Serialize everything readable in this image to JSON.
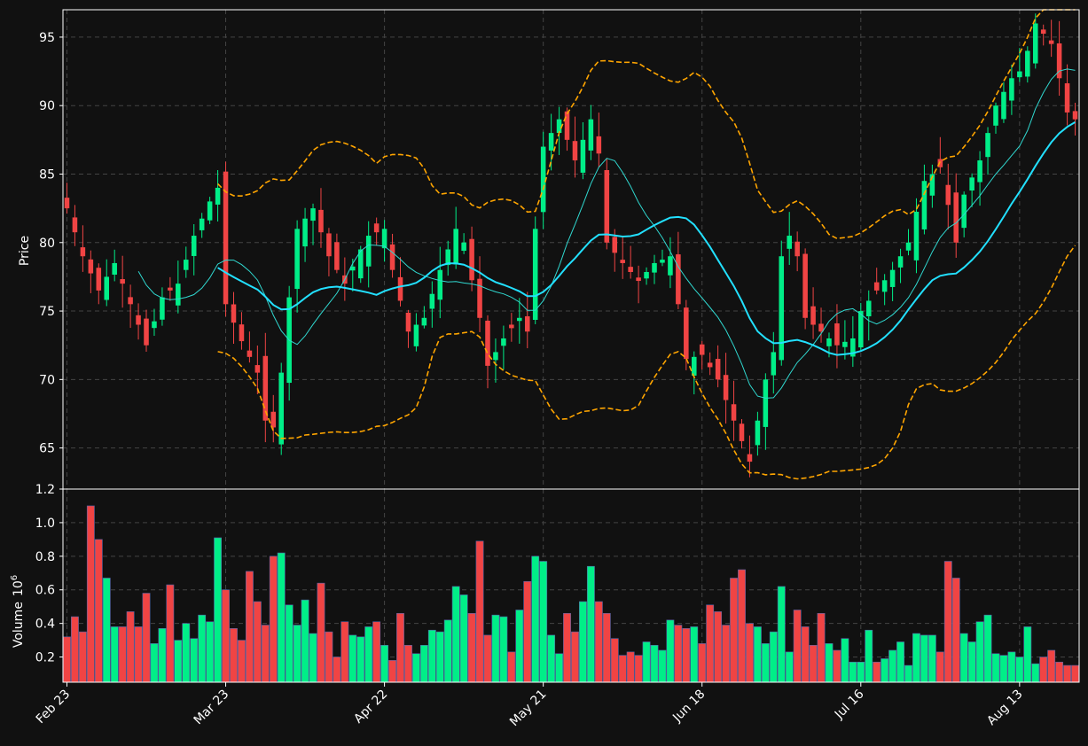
{
  "chart_data": {
    "type": "candlestick",
    "colors": {
      "background": "#111111",
      "up": "#00ee88",
      "down": "#f04444",
      "bollinger": "#ffa500",
      "ma_long": "#22e0ff",
      "ma_short": "#30d8d0",
      "grid": "#444444",
      "axis": "#ffffff"
    },
    "price_panel": {
      "ylabel": "Price",
      "ylim": [
        62.0,
        97.0
      ],
      "yticks": [
        "65",
        "70",
        "75",
        "80",
        "85",
        "90",
        "95"
      ]
    },
    "volume_panel": {
      "ylabel": "Volume",
      "ylabel_exponent": "6",
      "ylim": [
        0.05,
        1.2
      ],
      "yticks": [
        "0.2",
        "0.4",
        "0.6",
        "0.8",
        "1.0",
        "1.2"
      ]
    },
    "x_tick_labels": [
      {
        "index": 0,
        "label": "Feb 23"
      },
      {
        "index": 20,
        "label": "Mar 23"
      },
      {
        "index": 40,
        "label": "Apr 22"
      },
      {
        "index": 60,
        "label": "May 21"
      },
      {
        "index": 80,
        "label": "Jun 18"
      },
      {
        "index": 100,
        "label": "Jul 16"
      },
      {
        "index": 120,
        "label": "Aug 13"
      }
    ],
    "price_anchors": [
      [
        0,
        82.5
      ],
      [
        2,
        79.0
      ],
      [
        4,
        76.5
      ],
      [
        6,
        78.5
      ],
      [
        8,
        75.5
      ],
      [
        10,
        72.5
      ],
      [
        12,
        76.0
      ],
      [
        14,
        77.0
      ],
      [
        16,
        80.5
      ],
      [
        18,
        83.0
      ],
      [
        19,
        84.0
      ],
      [
        20,
        75.5
      ],
      [
        22,
        72.8
      ],
      [
        24,
        70.5
      ],
      [
        25,
        67.0
      ],
      [
        26,
        66.5
      ],
      [
        27,
        70.5
      ],
      [
        28,
        76.0
      ],
      [
        29,
        81.0
      ],
      [
        31,
        82.5
      ],
      [
        33,
        79.0
      ],
      [
        35,
        77.0
      ],
      [
        37,
        79.5
      ],
      [
        38,
        80.5
      ],
      [
        40,
        81.0
      ],
      [
        41,
        78.0
      ],
      [
        43,
        73.5
      ],
      [
        45,
        74.5
      ],
      [
        47,
        78.0
      ],
      [
        49,
        81.0
      ],
      [
        50,
        80.0
      ],
      [
        52,
        74.5
      ],
      [
        53,
        71.0
      ],
      [
        55,
        73.0
      ],
      [
        57,
        74.5
      ],
      [
        58,
        73.5
      ],
      [
        59,
        81.0
      ],
      [
        60,
        87.0
      ],
      [
        62,
        89.0
      ],
      [
        64,
        86.0
      ],
      [
        66,
        89.0
      ],
      [
        67,
        86.5
      ],
      [
        68,
        80.0
      ],
      [
        70,
        78.5
      ],
      [
        72,
        77.2
      ],
      [
        74,
        78.5
      ],
      [
        76,
        79.0
      ],
      [
        77,
        75.5
      ],
      [
        78,
        71.5
      ],
      [
        80,
        71.8
      ],
      [
        82,
        70.0
      ],
      [
        84,
        67.0
      ],
      [
        86,
        64.0
      ],
      [
        87,
        67.0
      ],
      [
        88,
        70.0
      ],
      [
        89,
        72.0
      ],
      [
        90,
        79.0
      ],
      [
        91,
        80.5
      ],
      [
        92,
        79.0
      ],
      [
        93,
        74.5
      ],
      [
        95,
        73.5
      ],
      [
        97,
        72.5
      ],
      [
        99,
        73.0
      ],
      [
        100,
        75.0
      ],
      [
        102,
        76.5
      ],
      [
        104,
        78.0
      ],
      [
        106,
        80.0
      ],
      [
        108,
        84.5
      ],
      [
        110,
        85.5
      ],
      [
        112,
        80.0
      ],
      [
        113,
        83.5
      ],
      [
        115,
        86.0
      ],
      [
        117,
        90.0
      ],
      [
        119,
        92.0
      ],
      [
        120,
        92.5
      ],
      [
        121,
        94.0
      ],
      [
        122,
        96.0
      ],
      [
        124,
        94.5
      ],
      [
        126,
        89.5
      ],
      [
        127,
        89.0
      ]
    ],
    "volume_anchors": [
      [
        0,
        0.32
      ],
      [
        1,
        0.44
      ],
      [
        2,
        0.35
      ],
      [
        3,
        1.1
      ],
      [
        4,
        0.9
      ],
      [
        5,
        0.67
      ],
      [
        6,
        0.38
      ],
      [
        7,
        0.38
      ],
      [
        8,
        0.47
      ],
      [
        9,
        0.38
      ],
      [
        10,
        0.58
      ],
      [
        11,
        0.28
      ],
      [
        12,
        0.37
      ],
      [
        13,
        0.63
      ],
      [
        14,
        0.3
      ],
      [
        15,
        0.4
      ],
      [
        16,
        0.31
      ],
      [
        17,
        0.45
      ],
      [
        18,
        0.41
      ],
      [
        19,
        0.91
      ],
      [
        20,
        0.6
      ],
      [
        21,
        0.37
      ],
      [
        22,
        0.3
      ],
      [
        23,
        0.71
      ],
      [
        24,
        0.53
      ],
      [
        25,
        0.39
      ],
      [
        26,
        0.8
      ],
      [
        27,
        0.82
      ],
      [
        28,
        0.51
      ],
      [
        29,
        0.39
      ],
      [
        30,
        0.54
      ],
      [
        31,
        0.34
      ],
      [
        32,
        0.64
      ],
      [
        33,
        0.35
      ],
      [
        34,
        0.2
      ],
      [
        35,
        0.41
      ],
      [
        36,
        0.33
      ],
      [
        37,
        0.32
      ],
      [
        38,
        0.38
      ],
      [
        39,
        0.41
      ],
      [
        40,
        0.27
      ],
      [
        41,
        0.18
      ],
      [
        42,
        0.46
      ],
      [
        43,
        0.27
      ],
      [
        44,
        0.22
      ],
      [
        45,
        0.27
      ],
      [
        46,
        0.36
      ],
      [
        47,
        0.35
      ],
      [
        48,
        0.42
      ],
      [
        49,
        0.62
      ],
      [
        50,
        0.57
      ],
      [
        51,
        0.46
      ],
      [
        52,
        0.89
      ],
      [
        53,
        0.33
      ],
      [
        54,
        0.45
      ],
      [
        55,
        0.44
      ],
      [
        56,
        0.23
      ],
      [
        57,
        0.48
      ],
      [
        58,
        0.65
      ],
      [
        59,
        0.8
      ],
      [
        60,
        0.77
      ],
      [
        61,
        0.33
      ],
      [
        62,
        0.22
      ],
      [
        63,
        0.46
      ],
      [
        64,
        0.35
      ],
      [
        65,
        0.53
      ],
      [
        66,
        0.74
      ],
      [
        67,
        0.53
      ],
      [
        68,
        0.46
      ],
      [
        69,
        0.31
      ],
      [
        70,
        0.21
      ],
      [
        71,
        0.23
      ],
      [
        72,
        0.21
      ],
      [
        73,
        0.29
      ],
      [
        74,
        0.27
      ],
      [
        75,
        0.24
      ],
      [
        76,
        0.42
      ],
      [
        77,
        0.39
      ],
      [
        78,
        0.37
      ],
      [
        79,
        0.38
      ],
      [
        80,
        0.28
      ],
      [
        81,
        0.51
      ],
      [
        82,
        0.47
      ],
      [
        83,
        0.39
      ],
      [
        84,
        0.67
      ],
      [
        85,
        0.72
      ],
      [
        86,
        0.4
      ],
      [
        87,
        0.38
      ],
      [
        88,
        0.28
      ],
      [
        89,
        0.35
      ],
      [
        90,
        0.62
      ],
      [
        91,
        0.23
      ],
      [
        92,
        0.48
      ],
      [
        93,
        0.38
      ],
      [
        94,
        0.27
      ],
      [
        95,
        0.46
      ],
      [
        96,
        0.28
      ],
      [
        97,
        0.24
      ],
      [
        98,
        0.31
      ],
      [
        99,
        0.17
      ],
      [
        100,
        0.17
      ],
      [
        101,
        0.36
      ],
      [
        102,
        0.17
      ],
      [
        103,
        0.19
      ],
      [
        104,
        0.24
      ],
      [
        105,
        0.29
      ],
      [
        106,
        0.15
      ],
      [
        107,
        0.34
      ],
      [
        108,
        0.33
      ],
      [
        109,
        0.33
      ],
      [
        110,
        0.23
      ],
      [
        111,
        0.77
      ],
      [
        112,
        0.67
      ],
      [
        113,
        0.34
      ],
      [
        114,
        0.29
      ],
      [
        115,
        0.41
      ],
      [
        116,
        0.45
      ],
      [
        117,
        0.22
      ],
      [
        118,
        0.21
      ],
      [
        119,
        0.23
      ],
      [
        120,
        0.2
      ],
      [
        121,
        0.38
      ],
      [
        122,
        0.16
      ],
      [
        123,
        0.2
      ],
      [
        124,
        0.24
      ],
      [
        125,
        0.17
      ],
      [
        126,
        0.15
      ],
      [
        127,
        0.15
      ]
    ],
    "bars": 128,
    "grid": true
  }
}
